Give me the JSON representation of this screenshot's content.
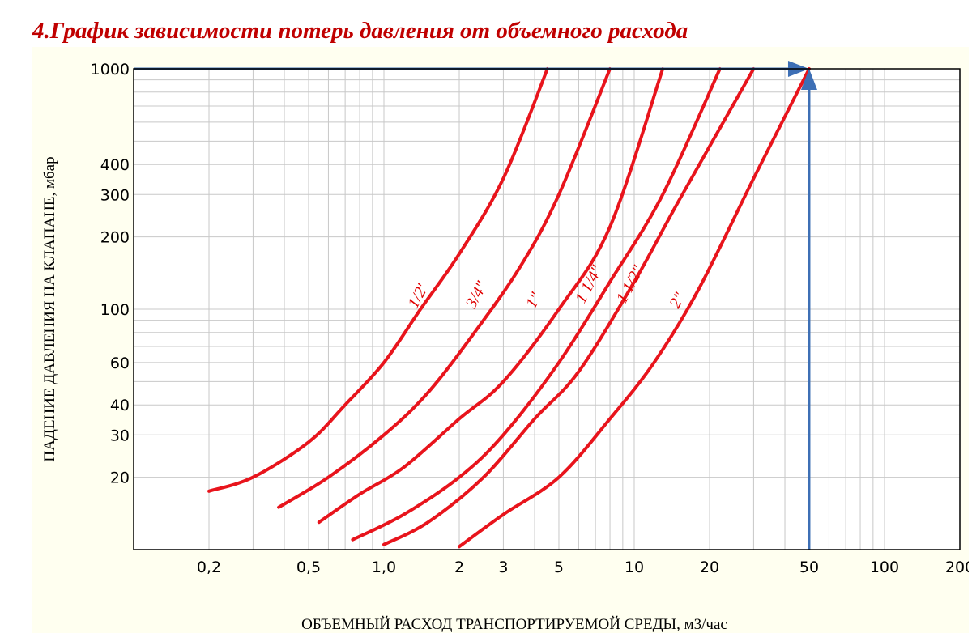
{
  "title": "4.График  зависимости потерь давления от  объемного расхода",
  "colors": {
    "title": "#c00000",
    "panel_background": "#fffff0",
    "grid": "#c8c8c8",
    "curve": "#e8141c",
    "guide": "#3d6fb5"
  },
  "chart_data": {
    "type": "line",
    "title": "4.График  зависимости потерь давления от  объемного расхода",
    "xlabel": "ОБЪЕМНЫЙ РАСХОД ТРАНСПОРТИРУЕМОЙ СРЕДЫ, м3/час",
    "ylabel": "ПАДЕНИЕ ДАВЛЕНИЯ НА КЛАПАНЕ, мбар",
    "xscale": "log",
    "yscale": "log",
    "xlim": [
      0.1,
      200
    ],
    "ylim": [
      10,
      1000
    ],
    "grid": true,
    "legend": "labels on curves",
    "x_ticks": [
      {
        "value": 0.2,
        "label": "0,2"
      },
      {
        "value": 0.5,
        "label": "0,5"
      },
      {
        "value": 1,
        "label": "1,0"
      },
      {
        "value": 2,
        "label": "2"
      },
      {
        "value": 3,
        "label": "3"
      },
      {
        "value": 5,
        "label": "5"
      },
      {
        "value": 10,
        "label": "10"
      },
      {
        "value": 20,
        "label": "20"
      },
      {
        "value": 50,
        "label": "50"
      },
      {
        "value": 100,
        "label": "100"
      },
      {
        "value": 200,
        "label": "200"
      }
    ],
    "y_ticks": [
      {
        "value": 20,
        "label": "20"
      },
      {
        "value": 30,
        "label": "30"
      },
      {
        "value": 40,
        "label": "40"
      },
      {
        "value": 60,
        "label": "60"
      },
      {
        "value": 100,
        "label": "100"
      },
      {
        "value": 200,
        "label": "200"
      },
      {
        "value": 300,
        "label": "300"
      },
      {
        "value": 400,
        "label": "400"
      },
      {
        "value": 1000,
        "label": "1000"
      }
    ],
    "series": [
      {
        "name": "1/2\"",
        "label": "1/2'",
        "label_at": [
          1.35,
          100
        ],
        "points": [
          [
            0.2,
            17.5
          ],
          [
            0.3,
            20
          ],
          [
            0.5,
            28
          ],
          [
            0.7,
            40
          ],
          [
            1.0,
            60
          ],
          [
            1.4,
            100
          ],
          [
            2.0,
            170
          ],
          [
            3.0,
            350
          ],
          [
            4.5,
            1000
          ]
        ]
      },
      {
        "name": "3/4\"",
        "label": "3/4\"",
        "label_at": [
          2.3,
          100
        ],
        "points": [
          [
            0.38,
            15
          ],
          [
            0.6,
            20
          ],
          [
            1.0,
            30
          ],
          [
            1.5,
            45
          ],
          [
            2.3,
            80
          ],
          [
            3.5,
            150
          ],
          [
            5.0,
            300
          ],
          [
            8.0,
            1000
          ]
        ]
      },
      {
        "name": "1\"",
        "label": "1\"",
        "label_at": [
          4.0,
          100
        ],
        "points": [
          [
            0.55,
            13
          ],
          [
            0.8,
            17
          ],
          [
            1.2,
            22
          ],
          [
            2.0,
            35
          ],
          [
            3.0,
            50
          ],
          [
            5.0,
            100
          ],
          [
            8.0,
            220
          ],
          [
            13,
            1000
          ]
        ]
      },
      {
        "name": "1 1/4\"",
        "label": "1 1/4\"",
        "label_at": [
          6.3,
          105
        ],
        "points": [
          [
            0.75,
            11
          ],
          [
            1.2,
            14
          ],
          [
            2.0,
            20
          ],
          [
            3.0,
            30
          ],
          [
            5.0,
            60
          ],
          [
            8.0,
            130
          ],
          [
            13,
            300
          ],
          [
            22,
            1000
          ]
        ]
      },
      {
        "name": "1 1/2\"",
        "label": "1 1/2\"",
        "label_at": [
          9.2,
          105
        ],
        "points": [
          [
            1.0,
            10.5
          ],
          [
            1.5,
            13
          ],
          [
            2.5,
            20
          ],
          [
            4.0,
            35
          ],
          [
            6.0,
            55
          ],
          [
            10,
            130
          ],
          [
            15,
            280
          ],
          [
            30,
            1000
          ]
        ]
      },
      {
        "name": "2\"",
        "label": "2\"",
        "label_at": [
          15,
          100
        ],
        "points": [
          [
            2.0,
            10.3
          ],
          [
            3.0,
            14
          ],
          [
            5.0,
            20
          ],
          [
            8.0,
            35
          ],
          [
            12,
            60
          ],
          [
            18,
            120
          ],
          [
            30,
            350
          ],
          [
            50,
            1000
          ]
        ]
      }
    ],
    "annotations": [
      {
        "type": "arrow",
        "from": [
          0.1,
          1000
        ],
        "to": [
          50,
          1000
        ]
      },
      {
        "type": "arrow",
        "from": [
          50,
          10
        ],
        "to": [
          50,
          1000
        ]
      }
    ]
  }
}
